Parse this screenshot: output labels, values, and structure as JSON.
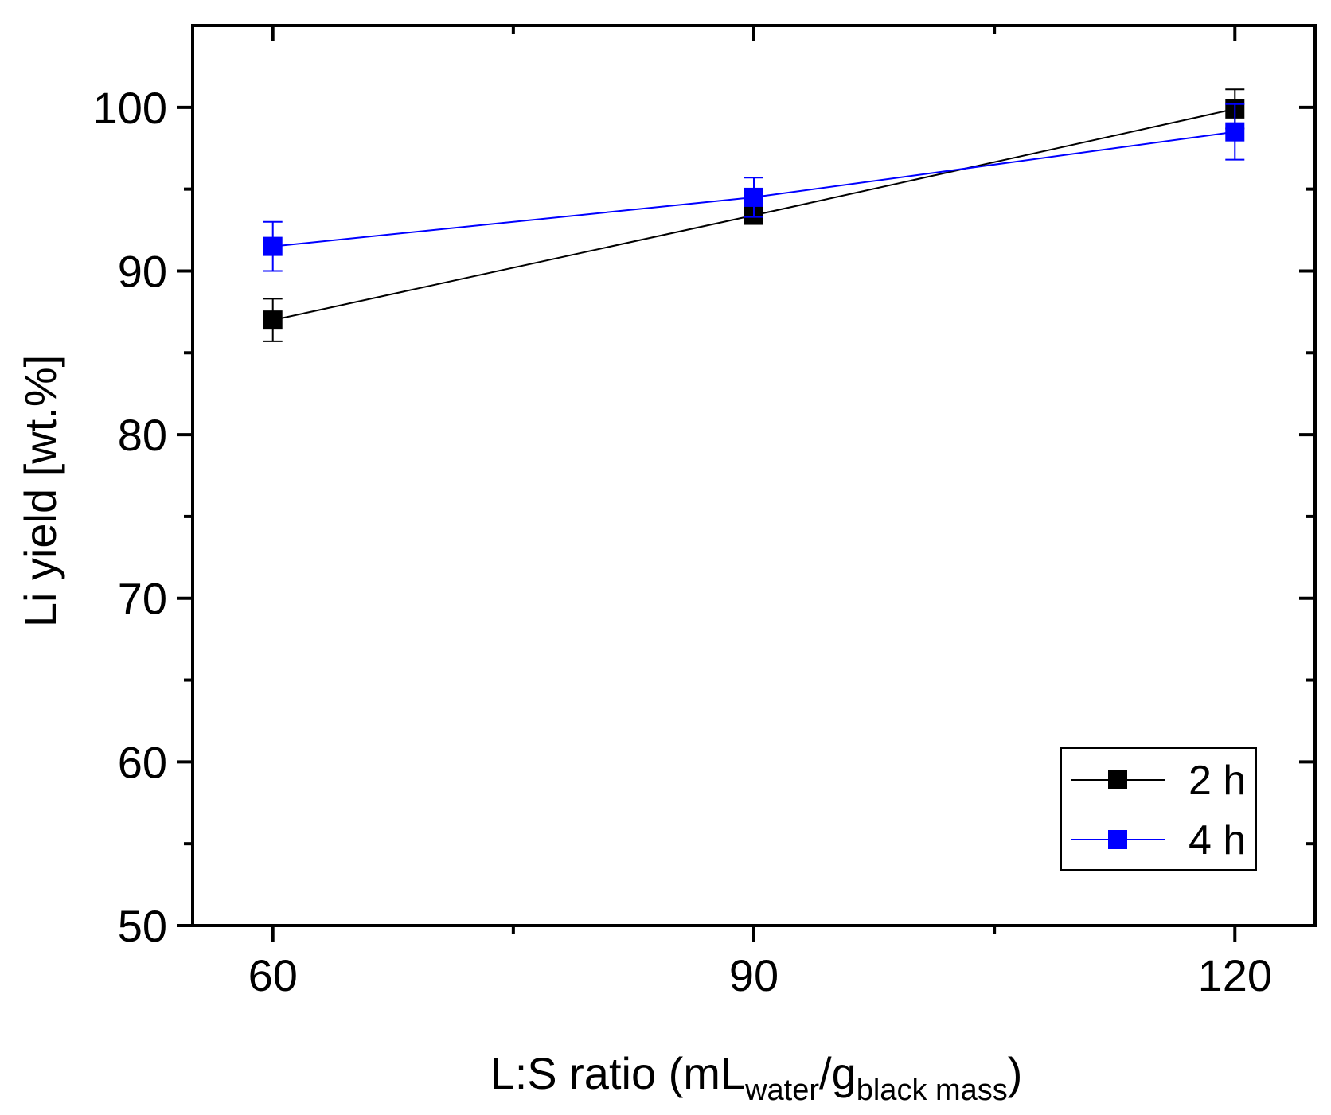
{
  "chart_data": {
    "type": "line",
    "title": "",
    "xlabel": {
      "main": "L:S ratio (mL",
      "sub1": "water",
      "mid": "/g",
      "sub2": "black mass",
      "end": ")"
    },
    "ylabel": "Li yield [wt.%]",
    "xlim": [
      55,
      125
    ],
    "ylim": [
      50,
      105
    ],
    "x_ticks": [
      60,
      90,
      120
    ],
    "x_tick_labels": [
      "60",
      "90",
      "120"
    ],
    "y_ticks": [
      50,
      60,
      70,
      80,
      90,
      100
    ],
    "y_tick_labels": [
      "50",
      "60",
      "70",
      "80",
      "90",
      "100"
    ],
    "grid": false,
    "legend_position": "bottom-right",
    "series": [
      {
        "name": "2 h",
        "color": "#000000",
        "marker": "square",
        "x": [
          60,
          90,
          120
        ],
        "y": [
          87.0,
          93.4,
          99.9
        ],
        "err": [
          1.3,
          0.0,
          1.2
        ]
      },
      {
        "name": "4 h",
        "color": "#0000ff",
        "marker": "square",
        "x": [
          60,
          90,
          120
        ],
        "y": [
          91.5,
          94.5,
          98.5
        ],
        "err": [
          1.5,
          1.2,
          1.7
        ]
      }
    ]
  }
}
